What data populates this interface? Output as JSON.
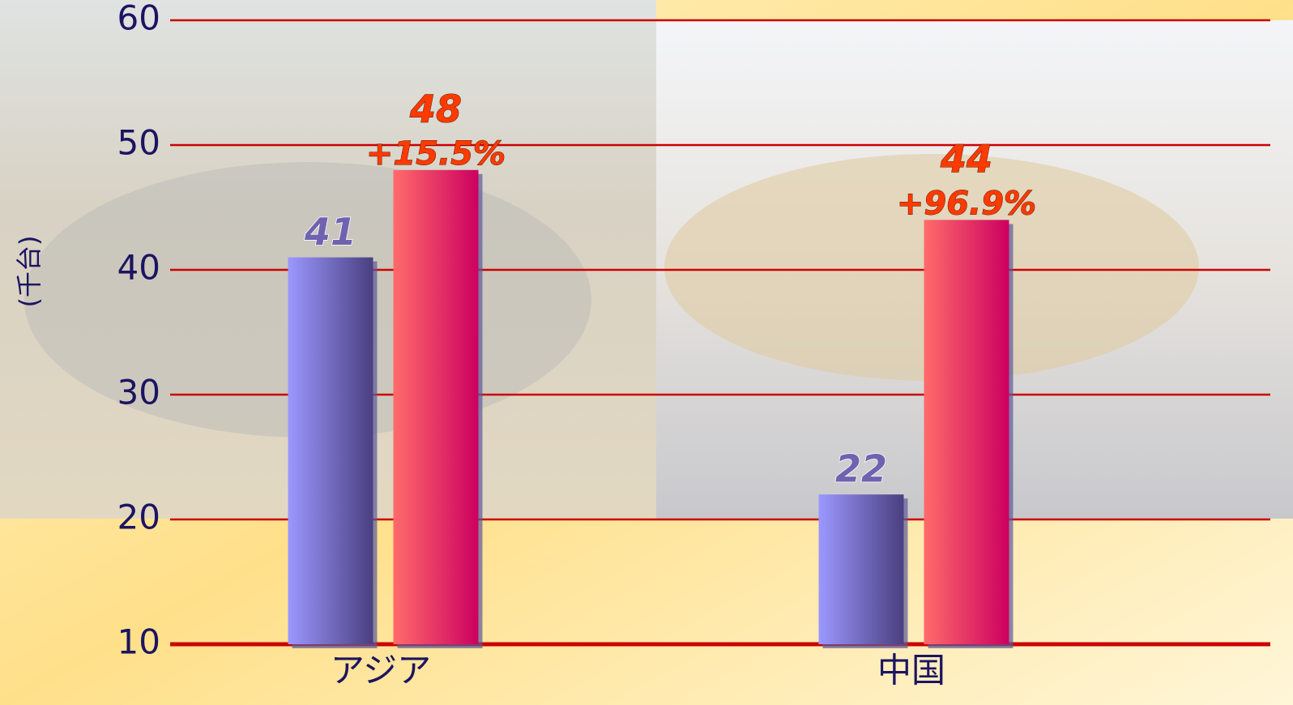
{
  "chart_data": {
    "type": "bar",
    "y_label": "(千台)",
    "categories": [
      "アジア",
      "中国"
    ],
    "series": [
      {
        "color": "#7b74d8",
        "values": [
          41,
          22
        ]
      },
      {
        "color": "#e83a6a",
        "values": [
          48,
          44
        ]
      }
    ],
    "annotations": [
      "+15.5%",
      "+96.9%"
    ],
    "ylim": [
      10,
      60
    ],
    "yticks": [
      10,
      20,
      30,
      40,
      50,
      60
    ],
    "grid": true
  }
}
